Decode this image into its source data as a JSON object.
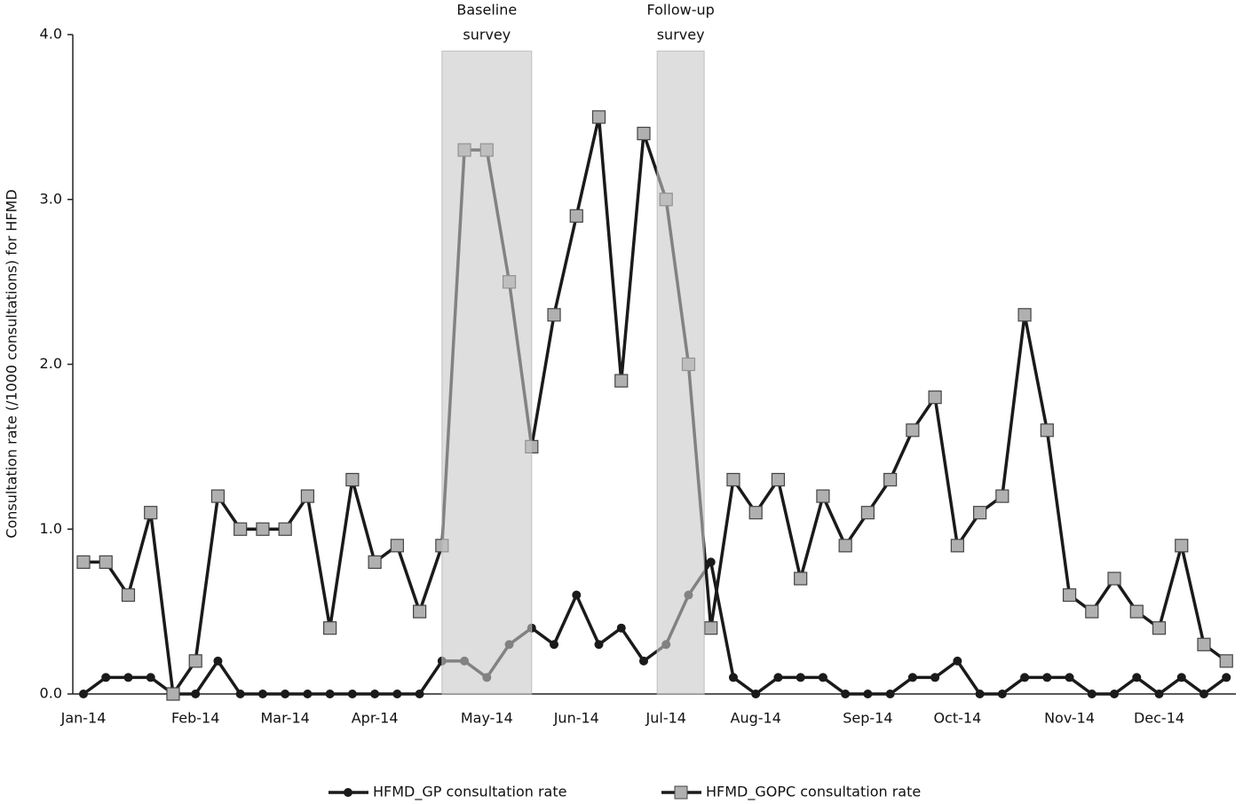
{
  "chart_data": {
    "type": "line",
    "y_label": "Consultation rate (/1000 consultations) for HFMD",
    "categories": [
      "Jan-14",
      null,
      null,
      null,
      null,
      "Feb-14",
      null,
      null,
      null,
      "Mar-14",
      null,
      null,
      null,
      "Apr-14",
      null,
      null,
      null,
      null,
      "May-14",
      null,
      null,
      null,
      "Jun-14",
      null,
      null,
      null,
      "Jul-14",
      null,
      null,
      null,
      "Aug-14",
      null,
      null,
      null,
      null,
      "Sep-14",
      null,
      null,
      null,
      "Oct-14",
      null,
      null,
      null,
      null,
      "Nov-14",
      null,
      null,
      null,
      "Dec-14",
      null,
      null,
      null
    ],
    "series": [
      {
        "name": "HFMD_GP consultation rate",
        "color": "#1a1a1a",
        "marker": "circle",
        "values": [
          0,
          0.1,
          0.1,
          0.1,
          0,
          0,
          0.2,
          0,
          0,
          0,
          0,
          0,
          0,
          0,
          0,
          0,
          0.2,
          0.2,
          0.1,
          0.3,
          0.4,
          0.3,
          0.6,
          0.3,
          0.4,
          0.2,
          0.3,
          0.6,
          0.8,
          0.1,
          0,
          0.1,
          0.1,
          0.1,
          0,
          0,
          0,
          0.1,
          0.1,
          0.2,
          0,
          0,
          0.1,
          0.1,
          0.1,
          0,
          0,
          0.1,
          0,
          0.1,
          0,
          0.1
        ]
      },
      {
        "name": "HFMD_GOPC consultation rate",
        "color": "#1a1a1a",
        "marker": "square",
        "marker_color": "#b0b0b0",
        "values": [
          0.8,
          0.8,
          0.6,
          1.1,
          0,
          0.2,
          1.2,
          1.0,
          1.0,
          1.0,
          1.2,
          0.4,
          1.3,
          0.8,
          0.9,
          0.5,
          0.9,
          3.3,
          3.3,
          2.5,
          1.5,
          2.3,
          2.9,
          3.5,
          1.9,
          3.4,
          3.0,
          2.0,
          0.4,
          1.3,
          1.1,
          1.3,
          0.7,
          1.2,
          0.9,
          1.1,
          1.3,
          1.6,
          1.8,
          0.9,
          1.1,
          1.2,
          2.3,
          1.6,
          0.6,
          0.5,
          0.7,
          0.5,
          0.4,
          0.9,
          0.3,
          0.2
        ]
      }
    ],
    "bands": [
      {
        "label": [
          "Baseline",
          "survey"
        ],
        "from": 16,
        "to": 20
      },
      {
        "label": [
          "Follow-up",
          "survey"
        ],
        "from": 25.6,
        "to": 27.7
      }
    ],
    "ylim": [
      0,
      4
    ],
    "yticks": [
      {
        "value": 0,
        "label": "0.0"
      },
      {
        "value": 1,
        "label": "1.0"
      },
      {
        "value": 2,
        "label": "2.0"
      },
      {
        "value": 3,
        "label": "3.0"
      },
      {
        "value": 4,
        "label": "4.0"
      }
    ],
    "legend": "bottom"
  }
}
